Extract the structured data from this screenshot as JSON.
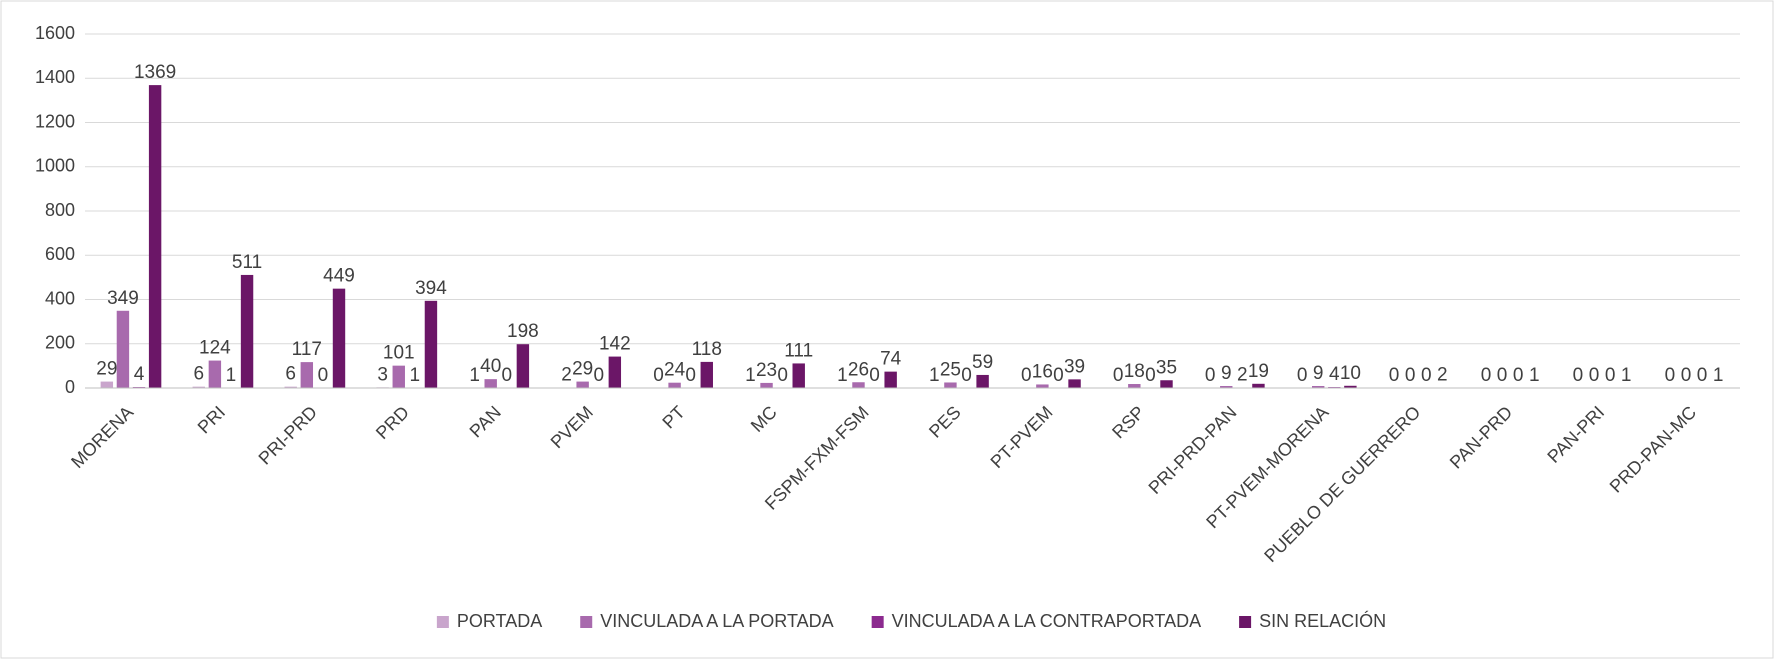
{
  "chart_data": {
    "type": "bar",
    "categories": [
      "MORENA",
      "PRI",
      "PRI-PRD",
      "PRD",
      "PAN",
      "PVEM",
      "PT",
      "MC",
      "FSPM-FXM-FSM",
      "PES",
      "PT-PVEM",
      "RSP",
      "PRI-PRD-PAN",
      "PT-PVEM-MORENA",
      "PUEBLO DE GUERRERO",
      "PAN-PRD",
      "PAN-PRI",
      "PRD-PAN-MC"
    ],
    "series": [
      {
        "name": "PORTADA",
        "color": "#c9a5cc",
        "values": [
          29,
          6,
          6,
          3,
          1,
          2,
          0,
          1,
          1,
          1,
          0,
          0,
          0,
          0,
          0,
          0,
          0,
          0
        ]
      },
      {
        "name": "VINCULADA A LA PORTADA",
        "color": "#a86aad",
        "values": [
          349,
          124,
          117,
          101,
          40,
          29,
          24,
          23,
          26,
          25,
          16,
          18,
          9,
          9,
          0,
          0,
          0,
          0
        ]
      },
      {
        "name": "VINCULADA A LA CONTRAPORTADA",
        "color": "#8c2a8f",
        "values": [
          4,
          1,
          0,
          1,
          0,
          0,
          0,
          0,
          0,
          0,
          0,
          0,
          2,
          4,
          0,
          0,
          0,
          0
        ]
      },
      {
        "name": "SIN RELACIÓN",
        "color": "#6b1667",
        "values": [
          1369,
          511,
          449,
          394,
          198,
          142,
          118,
          111,
          74,
          59,
          39,
          35,
          19,
          10,
          2,
          1,
          1,
          1
        ]
      }
    ],
    "ylim": [
      0,
      1600
    ],
    "yticks": [
      0,
      200,
      400,
      600,
      800,
      1000,
      1200,
      1400,
      1600
    ],
    "grid": true,
    "legend": "bottom"
  }
}
